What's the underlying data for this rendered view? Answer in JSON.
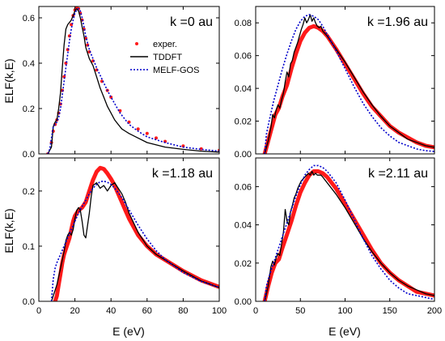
{
  "figure": {
    "ylabel": "ELF(k,E)",
    "xlabel": "E (eV)"
  },
  "legend": {
    "entries": [
      "exper.",
      "TDDFT",
      "MELF-GOS"
    ]
  },
  "colors": {
    "exper": "#ff1a1a",
    "tddft": "#000000",
    "melf": "#0000cc"
  },
  "chart_data": [
    {
      "type": "line",
      "label": "k =0 au",
      "xlim": [
        0,
        100
      ],
      "ylim": [
        0,
        0.65
      ],
      "xticks": [
        0,
        20,
        40,
        60,
        80,
        100
      ],
      "yticks": [
        0.0,
        0.2,
        0.4,
        0.6
      ],
      "has_legend": true,
      "series": [
        {
          "name": "exper.",
          "style": "dots",
          "x": [
            5,
            7,
            8,
            9,
            10,
            11,
            12,
            13,
            14,
            15,
            16,
            17,
            18,
            19,
            20,
            21,
            22,
            23,
            24,
            25,
            26,
            27,
            28,
            30,
            32,
            35,
            38,
            40,
            45,
            50,
            55,
            60,
            65,
            70,
            80,
            90,
            100
          ],
          "y": [
            0.0,
            0.05,
            0.1,
            0.13,
            0.15,
            0.18,
            0.22,
            0.28,
            0.34,
            0.4,
            0.46,
            0.52,
            0.57,
            0.61,
            0.635,
            0.645,
            0.64,
            0.62,
            0.59,
            0.55,
            0.51,
            0.48,
            0.45,
            0.41,
            0.37,
            0.32,
            0.28,
            0.25,
            0.19,
            0.14,
            0.11,
            0.09,
            0.07,
            0.055,
            0.035,
            0.022,
            0.015
          ]
        },
        {
          "name": "TDDFT",
          "style": "solid",
          "x": [
            5,
            7,
            8,
            9,
            10,
            11,
            12,
            13,
            14,
            15,
            16,
            17,
            18,
            19,
            20,
            21,
            22,
            23,
            24,
            25,
            26,
            28,
            30,
            32,
            34,
            36,
            38,
            40,
            42,
            44,
            46,
            48,
            50,
            55,
            60,
            70,
            80,
            90,
            100
          ],
          "y": [
            0.0,
            0.03,
            0.12,
            0.14,
            0.15,
            0.2,
            0.27,
            0.38,
            0.48,
            0.55,
            0.57,
            0.58,
            0.59,
            0.61,
            0.63,
            0.64,
            0.63,
            0.6,
            0.56,
            0.52,
            0.47,
            0.42,
            0.39,
            0.34,
            0.29,
            0.25,
            0.21,
            0.18,
            0.15,
            0.13,
            0.11,
            0.1,
            0.09,
            0.07,
            0.05,
            0.03,
            0.02,
            0.012,
            0.008
          ]
        },
        {
          "name": "MELF-GOS",
          "style": "dotted",
          "x": [
            5,
            6,
            7,
            8,
            9,
            10,
            11,
            12,
            13,
            14,
            15,
            16,
            17,
            18,
            19,
            20,
            21,
            22,
            23,
            24,
            25,
            26,
            28,
            30,
            32,
            35,
            38,
            40,
            45,
            50,
            55,
            60,
            70,
            80,
            90,
            100
          ],
          "y": [
            0.0,
            0.02,
            0.07,
            0.12,
            0.13,
            0.14,
            0.16,
            0.2,
            0.26,
            0.32,
            0.38,
            0.44,
            0.5,
            0.55,
            0.59,
            0.62,
            0.635,
            0.64,
            0.63,
            0.6,
            0.56,
            0.52,
            0.46,
            0.42,
            0.38,
            0.33,
            0.28,
            0.25,
            0.18,
            0.13,
            0.1,
            0.075,
            0.05,
            0.03,
            0.02,
            0.012
          ]
        }
      ]
    },
    {
      "type": "line",
      "label": "k =1.96 au",
      "xlim": [
        0,
        200
      ],
      "ylim": [
        0,
        0.09
      ],
      "xticks": [
        0,
        50,
        100,
        150,
        200
      ],
      "yticks": [
        0.0,
        0.02,
        0.04,
        0.06,
        0.08
      ],
      "has_legend": false,
      "series": [
        {
          "name": "exper.",
          "style": "thick",
          "x": [
            10,
            14,
            18,
            22,
            26,
            30,
            35,
            40,
            45,
            50,
            55,
            60,
            65,
            70,
            75,
            80,
            90,
            100,
            110,
            120,
            130,
            140,
            150,
            160,
            170,
            180,
            190,
            200
          ],
          "y": [
            0.0,
            0.008,
            0.016,
            0.024,
            0.028,
            0.035,
            0.042,
            0.052,
            0.061,
            0.069,
            0.074,
            0.077,
            0.078,
            0.077,
            0.075,
            0.072,
            0.064,
            0.055,
            0.046,
            0.037,
            0.029,
            0.023,
            0.017,
            0.013,
            0.01,
            0.007,
            0.005,
            0.004
          ]
        },
        {
          "name": "TDDFT",
          "style": "solid",
          "x": [
            10,
            14,
            17,
            19,
            21,
            23,
            25,
            27,
            29,
            31,
            33,
            35,
            37,
            39,
            41,
            43,
            45,
            47,
            49,
            51,
            53,
            55,
            57,
            59,
            61,
            63,
            65,
            67,
            69,
            71,
            73,
            75,
            80,
            90,
            100,
            110,
            120,
            130,
            140,
            150,
            160,
            170,
            180,
            190,
            200
          ],
          "y": [
            0.0,
            0.008,
            0.016,
            0.024,
            0.022,
            0.027,
            0.03,
            0.028,
            0.033,
            0.037,
            0.044,
            0.05,
            0.047,
            0.055,
            0.057,
            0.062,
            0.065,
            0.068,
            0.072,
            0.076,
            0.079,
            0.083,
            0.08,
            0.082,
            0.085,
            0.081,
            0.083,
            0.08,
            0.078,
            0.077,
            0.078,
            0.075,
            0.072,
            0.064,
            0.056,
            0.047,
            0.038,
            0.03,
            0.023,
            0.017,
            0.013,
            0.009,
            0.007,
            0.005,
            0.004
          ]
        },
        {
          "name": "MELF-GOS",
          "style": "dotted",
          "x": [
            10,
            12,
            15,
            20,
            25,
            30,
            35,
            40,
            45,
            50,
            55,
            60,
            65,
            70,
            75,
            80,
            90,
            100,
            110,
            120,
            130,
            140,
            150,
            160,
            170,
            180,
            190,
            200
          ],
          "y": [
            0.0,
            0.012,
            0.02,
            0.032,
            0.042,
            0.052,
            0.061,
            0.069,
            0.076,
            0.081,
            0.084,
            0.085,
            0.084,
            0.082,
            0.078,
            0.073,
            0.063,
            0.052,
            0.041,
            0.031,
            0.023,
            0.016,
            0.011,
            0.007,
            0.005,
            0.003,
            0.002,
            0.0015
          ]
        }
      ]
    },
    {
      "type": "line",
      "label": "k =1.18 au",
      "xlim": [
        0,
        100
      ],
      "ylim": [
        0,
        0.26
      ],
      "xticks": [
        0,
        20,
        40,
        60,
        80,
        100
      ],
      "yticks": [
        0.0,
        0.1,
        0.2
      ],
      "has_legend": false,
      "series": [
        {
          "name": "exper.",
          "style": "thick",
          "x": [
            9,
            10,
            11,
            12,
            13,
            14,
            15,
            16,
            17,
            18,
            19,
            20,
            21,
            22,
            24,
            26,
            28,
            30,
            32,
            34,
            36,
            38,
            40,
            42,
            44,
            46,
            48,
            50,
            55,
            60,
            65,
            70,
            80,
            90,
            100
          ],
          "y": [
            0.0,
            0.01,
            0.03,
            0.05,
            0.07,
            0.085,
            0.095,
            0.105,
            0.115,
            0.13,
            0.145,
            0.155,
            0.16,
            0.165,
            0.17,
            0.18,
            0.2,
            0.22,
            0.235,
            0.242,
            0.24,
            0.232,
            0.222,
            0.21,
            0.195,
            0.18,
            0.165,
            0.15,
            0.12,
            0.1,
            0.085,
            0.075,
            0.055,
            0.038,
            0.026
          ]
        },
        {
          "name": "TDDFT",
          "style": "solid",
          "x": [
            7,
            9,
            10,
            12,
            14,
            15,
            16,
            17,
            18,
            19,
            20,
            21,
            22,
            23,
            24,
            25,
            26,
            28,
            29,
            30,
            32,
            34,
            36,
            38,
            40,
            42,
            44,
            46,
            48,
            50,
            55,
            60,
            65,
            70,
            80,
            90,
            100
          ],
          "y": [
            0.0,
            0.02,
            0.03,
            0.06,
            0.09,
            0.11,
            0.12,
            0.125,
            0.12,
            0.13,
            0.15,
            0.165,
            0.17,
            0.165,
            0.145,
            0.12,
            0.115,
            0.16,
            0.19,
            0.21,
            0.215,
            0.205,
            0.21,
            0.2,
            0.21,
            0.215,
            0.205,
            0.195,
            0.18,
            0.16,
            0.125,
            0.1,
            0.085,
            0.075,
            0.055,
            0.037,
            0.025
          ]
        },
        {
          "name": "MELF-GOS",
          "style": "dotted",
          "x": [
            7,
            8,
            9,
            10,
            12,
            14,
            16,
            18,
            20,
            22,
            24,
            26,
            28,
            30,
            32,
            34,
            36,
            38,
            40,
            42,
            44,
            46,
            48,
            50,
            55,
            60,
            65,
            70,
            80,
            90,
            100
          ],
          "y": [
            0.0,
            0.04,
            0.06,
            0.07,
            0.085,
            0.1,
            0.115,
            0.13,
            0.145,
            0.16,
            0.172,
            0.183,
            0.195,
            0.205,
            0.212,
            0.217,
            0.218,
            0.216,
            0.212,
            0.205,
            0.197,
            0.188,
            0.177,
            0.166,
            0.138,
            0.113,
            0.092,
            0.076,
            0.052,
            0.036,
            0.025
          ]
        }
      ]
    },
    {
      "type": "line",
      "label": "k =2.11 au",
      "xlim": [
        0,
        200
      ],
      "ylim": [
        0,
        0.075
      ],
      "xticks": [
        0,
        50,
        100,
        150,
        200
      ],
      "yticks": [
        0.0,
        0.02,
        0.04,
        0.06
      ],
      "has_legend": false,
      "series": [
        {
          "name": "exper.",
          "style": "thick",
          "x": [
            10,
            14,
            18,
            22,
            26,
            30,
            35,
            40,
            45,
            50,
            55,
            60,
            65,
            70,
            75,
            80,
            90,
            100,
            110,
            120,
            130,
            140,
            150,
            160,
            170,
            180,
            190,
            200
          ],
          "y": [
            0.0,
            0.008,
            0.015,
            0.02,
            0.022,
            0.028,
            0.035,
            0.042,
            0.05,
            0.057,
            0.062,
            0.066,
            0.068,
            0.068,
            0.067,
            0.065,
            0.059,
            0.051,
            0.043,
            0.035,
            0.027,
            0.02,
            0.015,
            0.011,
            0.008,
            0.005,
            0.004,
            0.003
          ]
        },
        {
          "name": "TDDFT",
          "style": "solid",
          "x": [
            10,
            14,
            17,
            19,
            21,
            23,
            25,
            27,
            29,
            31,
            33,
            35,
            37,
            39,
            41,
            43,
            45,
            47,
            49,
            51,
            53,
            55,
            57,
            59,
            61,
            63,
            65,
            67,
            69,
            71,
            73,
            75,
            80,
            90,
            100,
            110,
            120,
            130,
            140,
            150,
            160,
            170,
            180,
            190,
            200
          ],
          "y": [
            0.0,
            0.008,
            0.018,
            0.021,
            0.019,
            0.023,
            0.025,
            0.024,
            0.03,
            0.036,
            0.048,
            0.042,
            0.04,
            0.047,
            0.05,
            0.054,
            0.056,
            0.059,
            0.061,
            0.063,
            0.064,
            0.065,
            0.066,
            0.067,
            0.066,
            0.068,
            0.066,
            0.067,
            0.066,
            0.066,
            0.066,
            0.065,
            0.062,
            0.056,
            0.049,
            0.041,
            0.033,
            0.026,
            0.02,
            0.015,
            0.011,
            0.008,
            0.006,
            0.004,
            0.003
          ]
        },
        {
          "name": "MELF-GOS",
          "style": "dotted",
          "x": [
            10,
            12,
            15,
            20,
            25,
            30,
            35,
            40,
            45,
            50,
            55,
            60,
            65,
            70,
            75,
            80,
            90,
            100,
            110,
            120,
            130,
            140,
            150,
            160,
            170,
            180,
            190,
            200
          ],
          "y": [
            0.0,
            0.008,
            0.013,
            0.02,
            0.027,
            0.034,
            0.041,
            0.048,
            0.055,
            0.061,
            0.066,
            0.069,
            0.071,
            0.071,
            0.07,
            0.068,
            0.062,
            0.053,
            0.043,
            0.033,
            0.024,
            0.017,
            0.011,
            0.007,
            0.004,
            0.003,
            0.002,
            0.001
          ]
        }
      ]
    }
  ]
}
